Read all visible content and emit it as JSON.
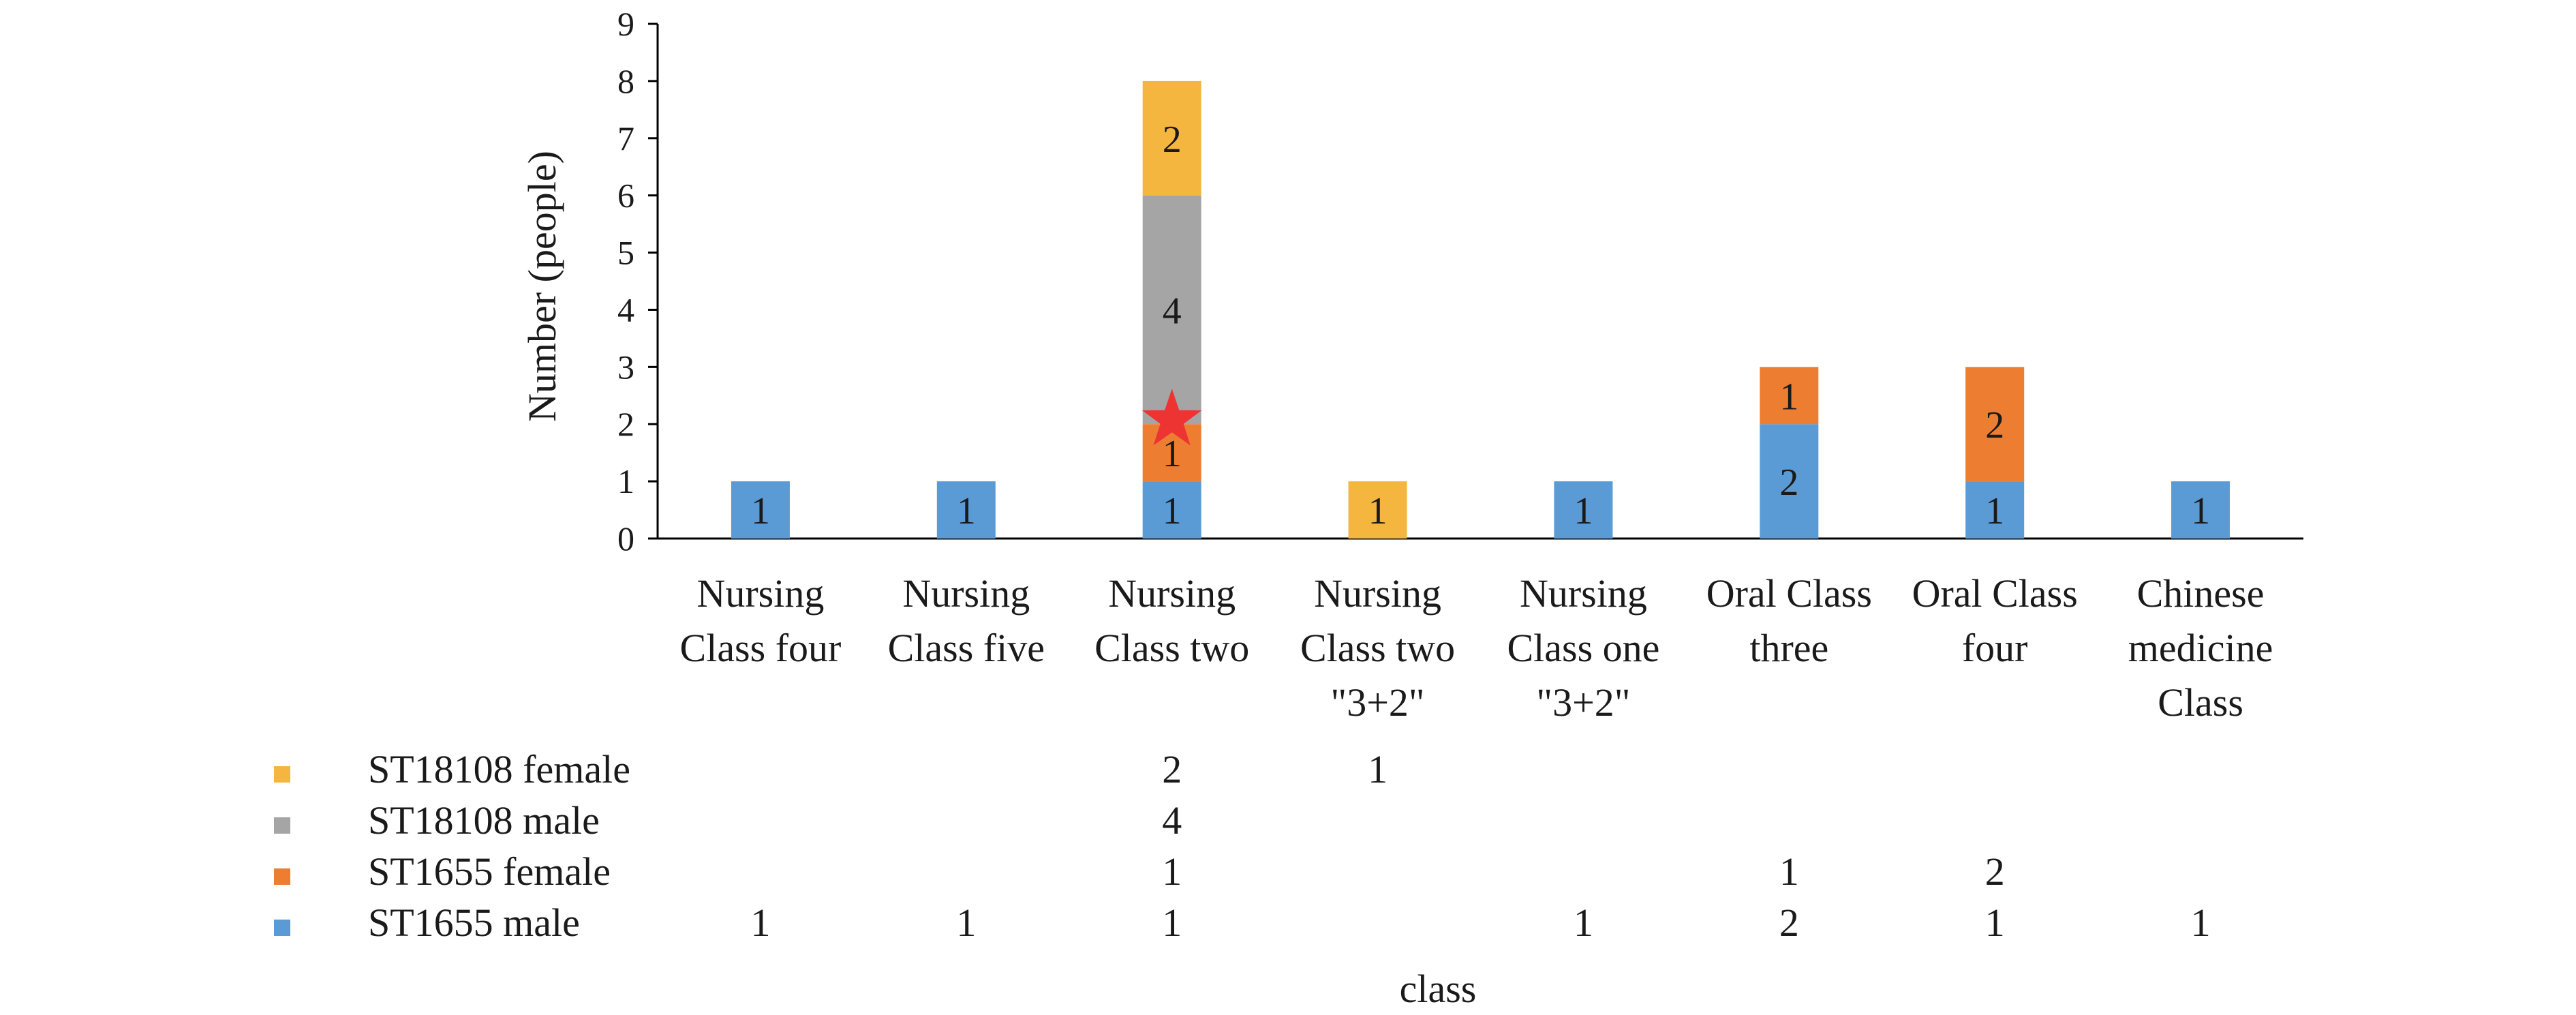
{
  "chart_data": {
    "type": "bar",
    "stacked": true,
    "title": "",
    "xlabel": "class",
    "ylabel": "Number (people)",
    "ylim": [
      0,
      9
    ],
    "yticks": [
      "0",
      "1",
      "2",
      "3",
      "4",
      "5",
      "6",
      "7",
      "8",
      "9"
    ],
    "grid": false,
    "legend_placement": "bottom data table",
    "categories": [
      [
        "Nursing",
        "Class four"
      ],
      [
        "Nursing",
        "Class five"
      ],
      [
        "Nursing",
        "Class two"
      ],
      [
        "Nursing",
        "Class two",
        "\"3+2\""
      ],
      [
        "Nursing",
        "Class one",
        "\"3+2\""
      ],
      [
        "Oral Class",
        "three"
      ],
      [
        "Oral Class",
        "four"
      ],
      [
        "Chinese",
        "medicine",
        "Class"
      ]
    ],
    "series": [
      {
        "name": "ST1655 male",
        "color": "#5b9bd5",
        "values": [
          1,
          1,
          1,
          null,
          1,
          2,
          1,
          1
        ]
      },
      {
        "name": "ST1655 female",
        "color": "#ed7d31",
        "values": [
          null,
          null,
          1,
          null,
          null,
          1,
          2,
          null
        ]
      },
      {
        "name": "ST18108 male",
        "color": "#a5a5a5",
        "values": [
          null,
          null,
          4,
          null,
          null,
          null,
          null,
          null
        ]
      },
      {
        "name": "ST18108 female",
        "color": "#f4b63f",
        "values": [
          null,
          null,
          2,
          1,
          null,
          null,
          null,
          null
        ]
      }
    ],
    "annotations": [
      {
        "type": "star-marker",
        "color": "#ee3333",
        "category_index": 2,
        "y": 2
      }
    ]
  }
}
